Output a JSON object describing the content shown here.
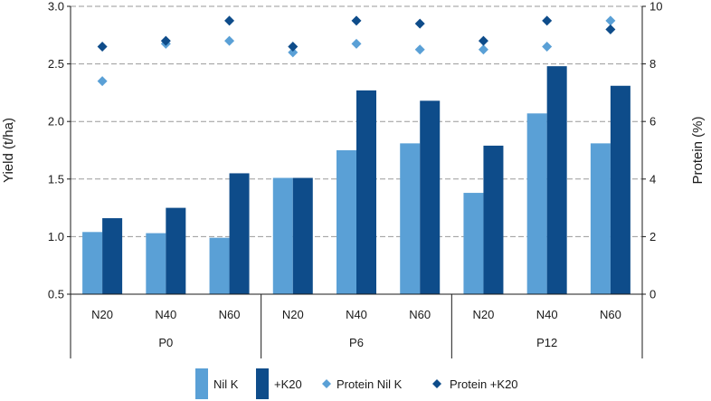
{
  "colors": {
    "nil_k": "#5aa0d6",
    "plus_k20": "#0e4c8a",
    "grid": "#9a9a9a",
    "axis": "#1a1a1a"
  },
  "chart_data": {
    "type": "bar",
    "ylabel": "Yield (t/ha)",
    "y2label": "Protein (%)",
    "ylim": [
      0.5,
      3.0
    ],
    "y2lim": [
      0,
      10
    ],
    "yticks": [
      "0.5",
      "1.0",
      "1.5",
      "2.0",
      "2.5",
      "3.0"
    ],
    "y2ticks": [
      "0",
      "2",
      "4",
      "6",
      "8",
      "10"
    ],
    "grid": "horizontal dashed",
    "legend_position": "bottom",
    "groups": [
      {
        "label": "P0",
        "categories": [
          "N20",
          "N40",
          "N60"
        ]
      },
      {
        "label": "P6",
        "categories": [
          "N20",
          "N40",
          "N60"
        ]
      },
      {
        "label": "P12",
        "categories": [
          "N20",
          "N40",
          "N60"
        ]
      }
    ],
    "series": [
      {
        "name": "Nil K",
        "kind": "bar",
        "axis": "left",
        "values": [
          1.04,
          1.03,
          0.99,
          1.51,
          1.75,
          1.81,
          1.38,
          2.07,
          1.81
        ]
      },
      {
        "name": "+K20",
        "kind": "bar",
        "axis": "left",
        "values": [
          1.16,
          1.25,
          1.55,
          1.51,
          2.27,
          2.18,
          1.79,
          2.48,
          2.31
        ]
      },
      {
        "name": "Protein Nil K",
        "kind": "marker",
        "axis": "right",
        "values": [
          7.4,
          8.7,
          8.8,
          8.4,
          8.7,
          8.5,
          8.5,
          8.6,
          9.5
        ]
      },
      {
        "name": "Protein +K20",
        "kind": "marker",
        "axis": "right",
        "values": [
          8.6,
          8.8,
          9.5,
          8.6,
          9.5,
          9.4,
          8.8,
          9.5,
          9.2
        ]
      }
    ]
  }
}
